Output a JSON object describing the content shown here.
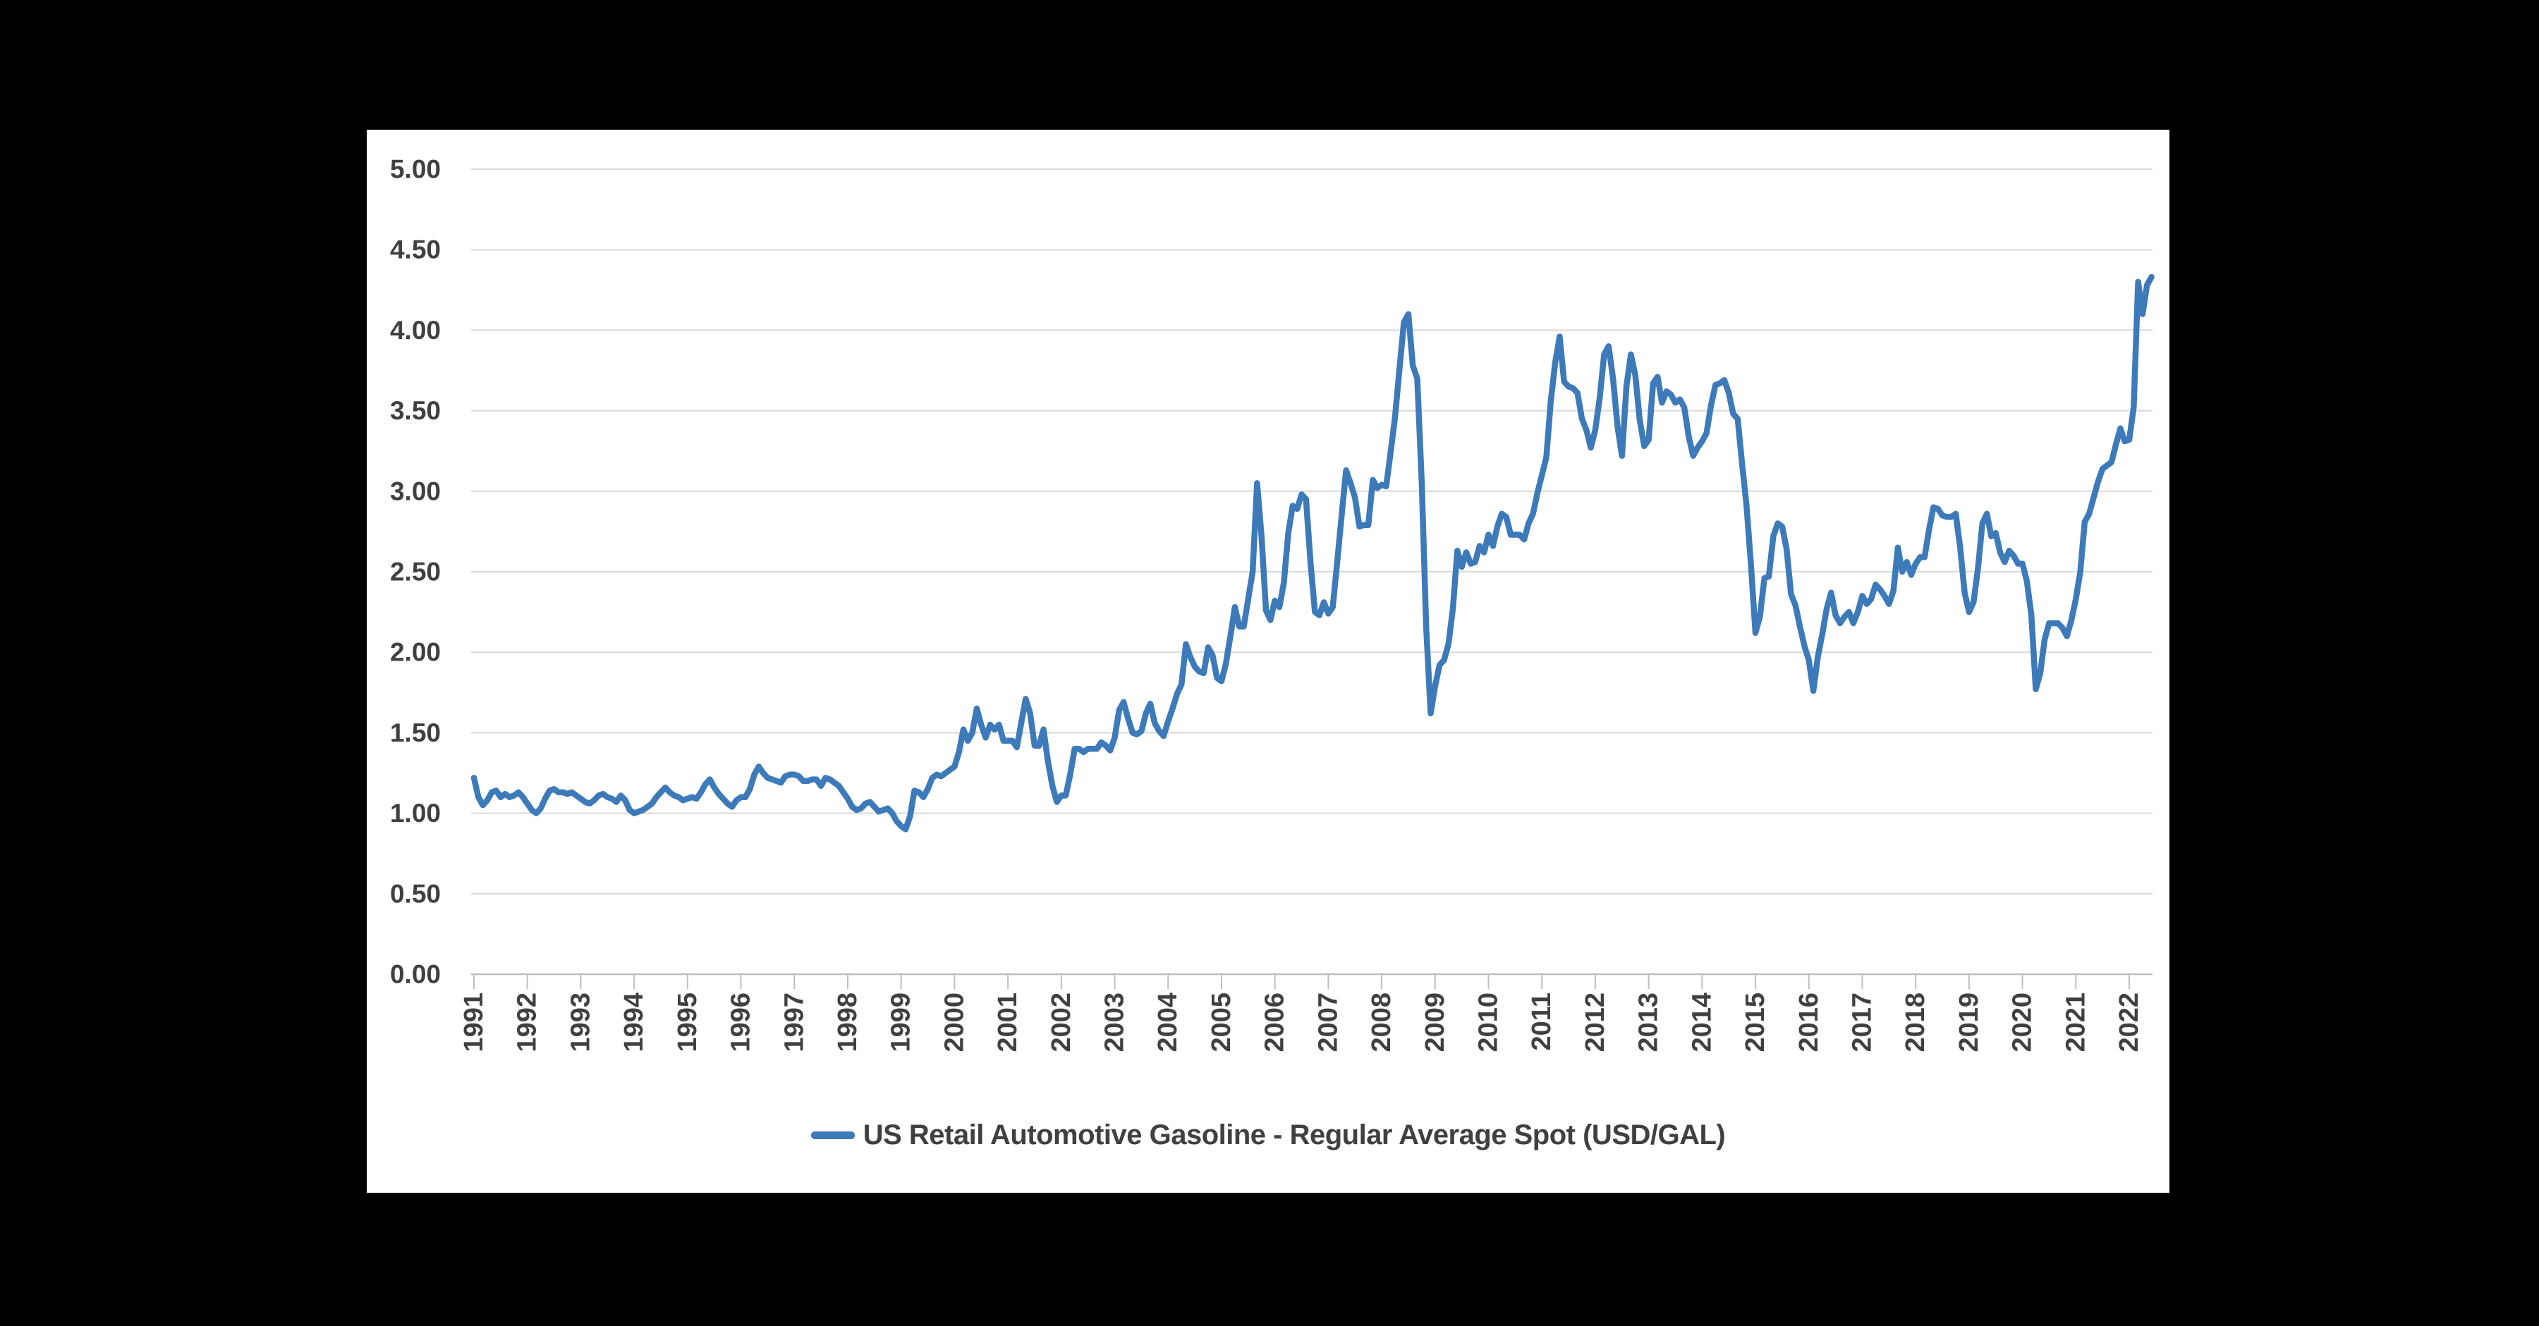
{
  "chart_data": {
    "type": "line",
    "title": "",
    "legend_label": "US Retail Automotive Gasoline - Regular Average Spot (USD/GAL)",
    "unit": "USD/GAL",
    "frequency": "monthly",
    "x_start": {
      "year": 1991,
      "month": 1
    },
    "x_end": {
      "year": 2022,
      "month": 6
    },
    "x_tick_years": [
      1991,
      1992,
      1993,
      1994,
      1995,
      1996,
      1997,
      1998,
      1999,
      2000,
      2001,
      2002,
      2003,
      2004,
      2005,
      2006,
      2007,
      2008,
      2009,
      2010,
      2011,
      2012,
      2013,
      2014,
      2015,
      2016,
      2017,
      2018,
      2019,
      2020,
      2021,
      2022
    ],
    "y_tick_labels": [
      "0.00",
      "0.50",
      "1.00",
      "1.50",
      "2.00",
      "2.50",
      "3.00",
      "3.50",
      "4.00",
      "4.50",
      "5.00"
    ],
    "ylim": [
      0,
      5
    ],
    "grid": "horizontal",
    "legend_position": "bottom-center",
    "colors": {
      "line": "#3d7ab9",
      "gridline": "#d9d9d9",
      "axis": "#bfbfbf",
      "tick_text": "#404040",
      "panel_background": "#ffffff",
      "page_background": "#000000"
    },
    "values": [
      1.22,
      1.1,
      1.05,
      1.08,
      1.13,
      1.14,
      1.1,
      1.12,
      1.1,
      1.11,
      1.13,
      1.1,
      1.06,
      1.02,
      1.0,
      1.03,
      1.09,
      1.14,
      1.15,
      1.13,
      1.13,
      1.12,
      1.13,
      1.11,
      1.09,
      1.07,
      1.06,
      1.08,
      1.11,
      1.12,
      1.1,
      1.09,
      1.07,
      1.11,
      1.08,
      1.02,
      1.0,
      1.01,
      1.02,
      1.04,
      1.06,
      1.1,
      1.13,
      1.16,
      1.13,
      1.11,
      1.1,
      1.08,
      1.09,
      1.1,
      1.09,
      1.13,
      1.18,
      1.21,
      1.16,
      1.12,
      1.09,
      1.06,
      1.04,
      1.08,
      1.1,
      1.1,
      1.15,
      1.24,
      1.29,
      1.25,
      1.22,
      1.21,
      1.2,
      1.19,
      1.23,
      1.24,
      1.24,
      1.23,
      1.2,
      1.2,
      1.21,
      1.21,
      1.17,
      1.22,
      1.21,
      1.19,
      1.17,
      1.13,
      1.09,
      1.04,
      1.02,
      1.03,
      1.06,
      1.07,
      1.04,
      1.01,
      1.02,
      1.03,
      1.0,
      0.95,
      0.92,
      0.9,
      0.98,
      1.14,
      1.13,
      1.1,
      1.15,
      1.22,
      1.24,
      1.23,
      1.25,
      1.27,
      1.29,
      1.38,
      1.52,
      1.45,
      1.5,
      1.65,
      1.55,
      1.47,
      1.55,
      1.52,
      1.55,
      1.45,
      1.45,
      1.45,
      1.41,
      1.56,
      1.71,
      1.62,
      1.42,
      1.42,
      1.52,
      1.32,
      1.17,
      1.07,
      1.11,
      1.11,
      1.24,
      1.4,
      1.4,
      1.38,
      1.4,
      1.4,
      1.4,
      1.44,
      1.42,
      1.39,
      1.47,
      1.64,
      1.69,
      1.59,
      1.5,
      1.49,
      1.51,
      1.62,
      1.68,
      1.56,
      1.51,
      1.48,
      1.57,
      1.65,
      1.74,
      1.8,
      2.05,
      1.97,
      1.91,
      1.88,
      1.87,
      2.03,
      1.98,
      1.84,
      1.82,
      1.93,
      2.1,
      2.28,
      2.16,
      2.16,
      2.33,
      2.5,
      3.05,
      2.72,
      2.26,
      2.2,
      2.32,
      2.28,
      2.43,
      2.74,
      2.91,
      2.89,
      2.98,
      2.95,
      2.56,
      2.25,
      2.23,
      2.31,
      2.24,
      2.28,
      2.56,
      2.85,
      3.13,
      3.05,
      2.96,
      2.78,
      2.79,
      2.79,
      3.07,
      3.02,
      3.04,
      3.03,
      3.24,
      3.46,
      3.76,
      4.05,
      4.1,
      3.78,
      3.7,
      3.05,
      2.15,
      1.62,
      1.79,
      1.92,
      1.95,
      2.05,
      2.27,
      2.63,
      2.53,
      2.62,
      2.55,
      2.56,
      2.66,
      2.62,
      2.73,
      2.66,
      2.78,
      2.86,
      2.84,
      2.73,
      2.73,
      2.73,
      2.7,
      2.8,
      2.86,
      2.99,
      3.1,
      3.21,
      3.56,
      3.8,
      3.96,
      3.68,
      3.65,
      3.64,
      3.61,
      3.45,
      3.38,
      3.27,
      3.38,
      3.58,
      3.85,
      3.9,
      3.7,
      3.4,
      3.22,
      3.65,
      3.85,
      3.72,
      3.44,
      3.28,
      3.32,
      3.67,
      3.71,
      3.55,
      3.62,
      3.6,
      3.55,
      3.57,
      3.52,
      3.34,
      3.22,
      3.27,
      3.31,
      3.36,
      3.53,
      3.66,
      3.67,
      3.69,
      3.61,
      3.48,
      3.45,
      3.17,
      2.91,
      2.54,
      2.12,
      2.22,
      2.46,
      2.47,
      2.72,
      2.8,
      2.78,
      2.64,
      2.36,
      2.29,
      2.16,
      2.04,
      1.95,
      1.76,
      1.97,
      2.11,
      2.27,
      2.37,
      2.23,
      2.18,
      2.22,
      2.25,
      2.18,
      2.25,
      2.35,
      2.3,
      2.33,
      2.42,
      2.39,
      2.35,
      2.3,
      2.38,
      2.65,
      2.5,
      2.56,
      2.48,
      2.55,
      2.59,
      2.59,
      2.76,
      2.9,
      2.89,
      2.85,
      2.84,
      2.84,
      2.86,
      2.65,
      2.37,
      2.25,
      2.31,
      2.52,
      2.8,
      2.86,
      2.72,
      2.74,
      2.62,
      2.56,
      2.63,
      2.6,
      2.55,
      2.55,
      2.44,
      2.23,
      1.77,
      1.87,
      2.08,
      2.18,
      2.18,
      2.18,
      2.15,
      2.1,
      2.2,
      2.33,
      2.5,
      2.81,
      2.86,
      2.96,
      3.06,
      3.14,
      3.16,
      3.18,
      3.29,
      3.39,
      3.31,
      3.32,
      3.52,
      4.3,
      4.1,
      4.28,
      4.33
    ]
  }
}
